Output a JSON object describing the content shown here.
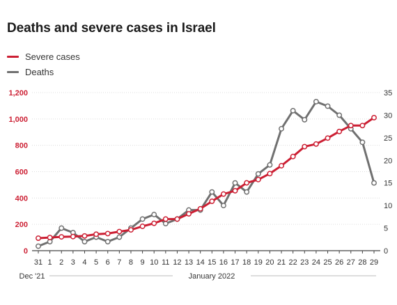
{
  "title": "Deaths and severe cases in Israel",
  "legend": [
    {
      "label": "Severe cases",
      "color": "#cc1f33"
    },
    {
      "label": "Deaths",
      "color": "#707070"
    }
  ],
  "periods": {
    "dec": "Dec '21",
    "jan": "January 2022"
  },
  "chart_data": {
    "type": "line",
    "title": "Deaths and severe cases in Israel",
    "categories": [
      "31",
      "1",
      "2",
      "3",
      "4",
      "5",
      "6",
      "7",
      "8",
      "9",
      "10",
      "11",
      "12",
      "13",
      "14",
      "15",
      "16",
      "17",
      "18",
      "19",
      "20",
      "21",
      "22",
      "23",
      "24",
      "25",
      "26",
      "27",
      "28",
      "29"
    ],
    "y_left": {
      "ticks": [
        0,
        200,
        400,
        600,
        800,
        1000,
        1200
      ],
      "tick_labels": [
        "0",
        "200",
        "400",
        "600",
        "800",
        "1,000",
        "1,200"
      ],
      "lim": [
        0,
        1200
      ]
    },
    "y_right": {
      "ticks": [
        0,
        5,
        10,
        15,
        20,
        25,
        30,
        35
      ],
      "tick_labels": [
        "0",
        "5",
        "10",
        "15",
        "20",
        "25",
        "30",
        "35"
      ],
      "lim": [
        0,
        35
      ]
    },
    "grid": true,
    "legend_position": "top-left",
    "series": [
      {
        "name": "Severe cases",
        "axis": "left",
        "color": "#cc1f33",
        "values": [
          95,
          100,
          105,
          107,
          112,
          125,
          130,
          145,
          158,
          185,
          208,
          240,
          240,
          280,
          318,
          375,
          430,
          455,
          515,
          540,
          585,
          645,
          715,
          790,
          810,
          855,
          905,
          950,
          950,
          1010
        ]
      },
      {
        "name": "Deaths",
        "axis": "right",
        "color": "#707070",
        "values": [
          1,
          2,
          5,
          4,
          2,
          3,
          2,
          3,
          5,
          7,
          8,
          6,
          7,
          9,
          9,
          13,
          10,
          15,
          13,
          17,
          19,
          27,
          31,
          29,
          33,
          32,
          30,
          27,
          24,
          15
        ]
      }
    ]
  }
}
